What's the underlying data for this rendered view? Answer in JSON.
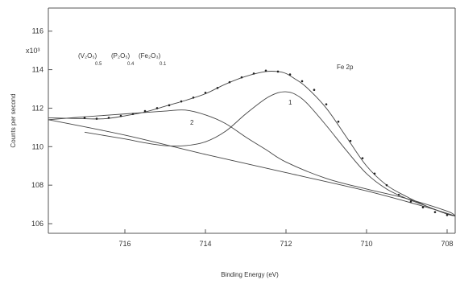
{
  "chart_data": {
    "type": "line",
    "title": "",
    "xlabel": "Binding Energy  (eV)",
    "ylabel": "Counts  per  second",
    "y_multiplier": "x10³",
    "xlim": [
      717.9,
      707.8
    ],
    "ylim": [
      105.5,
      117.2
    ],
    "x_reversed": true,
    "x_ticks": [
      716,
      714,
      712,
      710,
      708
    ],
    "y_ticks": [
      106,
      108,
      110,
      112,
      114,
      116
    ],
    "grid": false,
    "legend": "none",
    "annotations": {
      "composition_labels": [
        "(V₂O₅)",
        "(P₂O₅)",
        "(Fe₂O₃)"
      ],
      "composition_values": [
        "0.5",
        "0.4",
        "0.1"
      ],
      "spectrum_label": "Fe 2p",
      "peak_labels": [
        "1",
        "2"
      ]
    },
    "series": [
      {
        "kind": "background",
        "x": [
          717.9,
          716,
          714,
          712,
          710,
          708.5,
          707.8
        ],
        "values": [
          111.4,
          110.6,
          109.6,
          108.65,
          107.7,
          106.85,
          106.4
        ]
      },
      {
        "kind": "component",
        "label": "2",
        "x": [
          717.9,
          717,
          716,
          715,
          714.5,
          714,
          713.5,
          713,
          712.5,
          712,
          711,
          710,
          709,
          708,
          707.8
        ],
        "values": [
          111.4,
          111.55,
          111.7,
          111.85,
          111.9,
          111.65,
          111.2,
          110.5,
          109.85,
          109.2,
          108.35,
          107.8,
          107.3,
          106.65,
          106.4
        ]
      },
      {
        "kind": "component",
        "label": "1",
        "x": [
          717,
          716,
          715.5,
          715,
          714.5,
          714,
          713.5,
          713,
          712.5,
          712.2,
          712,
          711.8,
          711.5,
          711,
          710.5,
          710,
          709.5,
          709,
          708.5,
          708,
          707.8
        ],
        "values": [
          110.75,
          110.4,
          110.2,
          110.05,
          110.05,
          110.25,
          110.8,
          111.7,
          112.5,
          112.8,
          112.85,
          112.75,
          112.3,
          111.1,
          109.8,
          108.6,
          107.8,
          107.3,
          106.9,
          106.5,
          106.4
        ]
      },
      {
        "kind": "envelope",
        "x": [
          717.9,
          717,
          716.5,
          716,
          715.5,
          715,
          714.5,
          714,
          713.5,
          713,
          712.5,
          712.2,
          712,
          711.8,
          711.5,
          711,
          710.5,
          710,
          709.5,
          709,
          708.5,
          708,
          707.8
        ],
        "values": [
          111.5,
          111.45,
          111.45,
          111.6,
          111.8,
          112.1,
          112.4,
          112.75,
          113.25,
          113.65,
          113.9,
          113.9,
          113.8,
          113.55,
          113.1,
          112.0,
          110.5,
          109.0,
          108.0,
          107.4,
          106.9,
          106.5,
          106.4
        ]
      },
      {
        "kind": "data-points",
        "x": [
          717.0,
          716.7,
          716.4,
          716.1,
          715.8,
          715.5,
          715.2,
          714.9,
          714.6,
          714.3,
          714.0,
          713.7,
          713.4,
          713.1,
          712.8,
          712.5,
          712.2,
          711.9,
          711.6,
          711.3,
          711.0,
          710.7,
          710.4,
          710.1,
          709.8,
          709.5,
          709.2,
          708.9,
          708.6,
          708.3,
          708.0
        ],
        "values": [
          111.5,
          111.45,
          111.5,
          111.6,
          111.7,
          111.85,
          112.0,
          112.15,
          112.35,
          112.55,
          112.8,
          113.05,
          113.35,
          113.6,
          113.8,
          113.95,
          113.9,
          113.75,
          113.4,
          112.95,
          112.2,
          111.3,
          110.3,
          109.4,
          108.6,
          108.0,
          107.5,
          107.15,
          106.85,
          106.6,
          106.45
        ]
      }
    ]
  },
  "colors": {
    "line": "#444444",
    "points": "#222222",
    "axis": "#555555"
  }
}
